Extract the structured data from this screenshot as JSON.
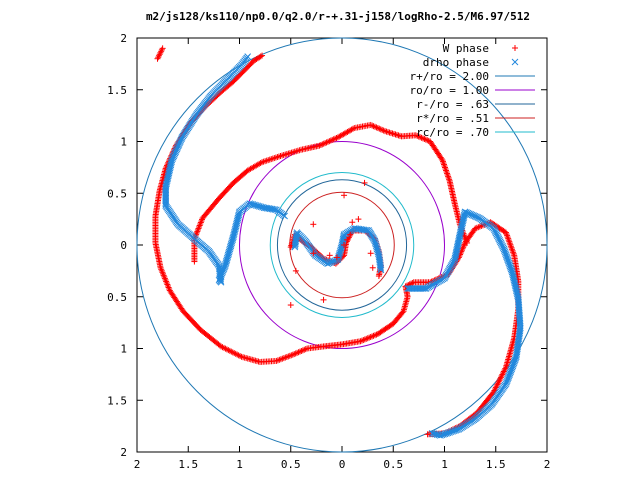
{
  "chart_data": {
    "type": "scatter",
    "title": "m2/js128/ks110/np0.0/q2.0/r-+.31-j158/logRho-2.5/M6.97/512",
    "xlim": [
      -2,
      2
    ],
    "ylim": [
      -2,
      2
    ],
    "x_tick_labels": [
      "2",
      "1.5",
      "1",
      "0.5",
      "0",
      "0.5",
      "1",
      "1.5",
      "2"
    ],
    "y_tick_labels": [
      "2",
      "1.5",
      "1",
      "0.5",
      "0",
      "0.5",
      "1",
      "1.5",
      "2"
    ],
    "grid": false,
    "legend_position": "top-right",
    "series": [
      {
        "name": "W phase",
        "marker": "plus",
        "color": "#ff0000",
        "points": [
          [
            -0.5,
            -0.58
          ],
          [
            -0.18,
            -0.53
          ],
          [
            0.22,
            0.6
          ],
          [
            0.02,
            0.48
          ],
          [
            -0.45,
            -0.25
          ],
          [
            -0.28,
            0.2
          ],
          [
            -0.28,
            -0.08
          ],
          [
            0.16,
            0.25
          ],
          [
            0.1,
            0.22
          ],
          [
            0.05,
            0.05
          ],
          [
            0.08,
            0.1
          ],
          [
            0.02,
            0.0
          ],
          [
            -0.05,
            -0.12
          ],
          [
            -0.12,
            -0.1
          ],
          [
            0.3,
            -0.22
          ],
          [
            0.28,
            -0.08
          ]
        ]
      },
      {
        "name": "drho phase",
        "marker": "cross",
        "color": "#2288dd",
        "points": []
      }
    ],
    "arms": [
      {
        "series": "W phase",
        "points": [
          [
            -0.78,
            1.83
          ],
          [
            -0.86,
            1.78
          ],
          [
            -0.96,
            1.68
          ],
          [
            -1.06,
            1.58
          ],
          [
            -1.18,
            1.48
          ],
          [
            -1.32,
            1.35
          ],
          [
            -1.48,
            1.18
          ],
          [
            -1.62,
            0.96
          ],
          [
            -1.72,
            0.74
          ],
          [
            -1.78,
            0.52
          ],
          [
            -1.82,
            0.28
          ],
          [
            -1.82,
            0.02
          ],
          [
            -1.77,
            -0.22
          ],
          [
            -1.68,
            -0.44
          ],
          [
            -1.55,
            -0.64
          ],
          [
            -1.38,
            -0.82
          ],
          [
            -1.18,
            -0.98
          ],
          [
            -0.98,
            -1.08
          ],
          [
            -0.8,
            -1.13
          ],
          [
            -0.64,
            -1.12
          ],
          [
            -0.48,
            -1.06
          ],
          [
            -0.34,
            -1.0
          ],
          [
            -0.18,
            -0.98
          ],
          [
            0.0,
            -0.96
          ],
          [
            0.18,
            -0.93
          ],
          [
            0.35,
            -0.86
          ],
          [
            0.5,
            -0.76
          ],
          [
            0.6,
            -0.64
          ],
          [
            0.64,
            -0.5
          ],
          [
            0.62,
            -0.4
          ],
          [
            0.7,
            -0.36
          ],
          [
            0.86,
            -0.36
          ],
          [
            1.04,
            -0.28
          ],
          [
            1.14,
            -0.12
          ],
          [
            1.2,
            0.02
          ],
          [
            1.3,
            0.16
          ],
          [
            1.45,
            0.22
          ],
          [
            1.6,
            0.12
          ],
          [
            1.68,
            -0.1
          ],
          [
            1.72,
            -0.35
          ],
          [
            1.72,
            -0.62
          ],
          [
            1.68,
            -0.9
          ],
          [
            1.6,
            -1.18
          ],
          [
            1.48,
            -1.42
          ],
          [
            1.32,
            -1.62
          ],
          [
            1.15,
            -1.75
          ],
          [
            1.0,
            -1.82
          ],
          [
            0.82,
            -1.83
          ],
          [
            -1.75,
            1.9
          ],
          [
            -1.8,
            1.8
          ]
        ]
      },
      {
        "series": "W phase",
        "points": [
          [
            1.22,
            0.02
          ],
          [
            1.15,
            0.2
          ],
          [
            1.1,
            0.4
          ],
          [
            1.05,
            0.62
          ],
          [
            0.98,
            0.82
          ],
          [
            0.86,
            1.0
          ],
          [
            0.72,
            1.06
          ],
          [
            0.58,
            1.05
          ],
          [
            0.42,
            1.1
          ],
          [
            0.28,
            1.16
          ],
          [
            0.12,
            1.13
          ],
          [
            -0.04,
            1.04
          ],
          [
            -0.22,
            0.96
          ],
          [
            -0.4,
            0.92
          ],
          [
            -0.6,
            0.86
          ],
          [
            -0.78,
            0.8
          ],
          [
            -0.92,
            0.72
          ],
          [
            -1.06,
            0.6
          ],
          [
            -1.2,
            0.45
          ],
          [
            -1.36,
            0.26
          ],
          [
            -1.44,
            0.06
          ],
          [
            -1.44,
            -0.16
          ]
        ]
      },
      {
        "series": "W phase",
        "points": [
          [
            -0.5,
            -0.02
          ],
          [
            -0.46,
            0.1
          ],
          [
            -0.42,
            0.06
          ],
          [
            -0.3,
            -0.02
          ],
          [
            -0.18,
            -0.13
          ],
          [
            -0.06,
            -0.18
          ],
          [
            0.02,
            -0.1
          ],
          [
            0.04,
            0.02
          ],
          [
            0.1,
            0.14
          ],
          [
            0.22,
            0.14
          ],
          [
            0.32,
            0.06
          ],
          [
            0.36,
            -0.06
          ],
          [
            0.38,
            -0.2
          ],
          [
            0.36,
            -0.3
          ]
        ]
      },
      {
        "series": "drho phase",
        "points": [
          [
            -0.92,
            1.82
          ],
          [
            -0.98,
            1.74
          ],
          [
            -1.06,
            1.66
          ],
          [
            -1.16,
            1.56
          ],
          [
            -1.28,
            1.44
          ],
          [
            -1.42,
            1.26
          ],
          [
            -1.56,
            1.04
          ],
          [
            -1.66,
            0.82
          ],
          [
            -1.72,
            0.56
          ],
          [
            -1.72,
            0.38
          ],
          [
            -1.6,
            0.2
          ],
          [
            -1.44,
            0.06
          ],
          [
            -1.3,
            -0.06
          ],
          [
            -1.2,
            -0.2
          ],
          [
            -1.18,
            -0.36
          ],
          [
            -1.2,
            -0.34
          ],
          [
            -1.14,
            -0.2
          ],
          [
            -1.06,
            0.08
          ],
          [
            -1.0,
            0.32
          ],
          [
            -0.9,
            0.4
          ],
          [
            -0.76,
            0.36
          ],
          [
            -0.64,
            0.34
          ],
          [
            -0.56,
            0.28
          ]
        ]
      },
      {
        "series": "drho phase",
        "points": [
          [
            -0.46,
            -0.02
          ],
          [
            -0.44,
            0.12
          ],
          [
            -0.36,
            0.04
          ],
          [
            -0.26,
            -0.1
          ],
          [
            -0.14,
            -0.18
          ],
          [
            -0.04,
            -0.14
          ],
          [
            0.0,
            0.0
          ],
          [
            0.02,
            0.1
          ],
          [
            0.12,
            0.16
          ],
          [
            0.26,
            0.14
          ],
          [
            0.32,
            0.04
          ],
          [
            0.36,
            -0.1
          ],
          [
            0.38,
            -0.24
          ]
        ]
      },
      {
        "series": "drho phase",
        "points": [
          [
            0.64,
            -0.42
          ],
          [
            0.82,
            -0.42
          ],
          [
            1.0,
            -0.32
          ],
          [
            1.1,
            -0.14
          ],
          [
            1.16,
            0.14
          ],
          [
            1.2,
            0.32
          ],
          [
            1.34,
            0.26
          ],
          [
            1.48,
            0.16
          ],
          [
            1.58,
            -0.04
          ],
          [
            1.66,
            -0.26
          ],
          [
            1.72,
            -0.52
          ],
          [
            1.74,
            -0.8
          ],
          [
            1.7,
            -1.08
          ],
          [
            1.6,
            -1.34
          ],
          [
            1.46,
            -1.54
          ],
          [
            1.3,
            -1.68
          ],
          [
            1.14,
            -1.78
          ],
          [
            0.96,
            -1.84
          ],
          [
            0.88,
            -1.82
          ]
        ]
      }
    ],
    "circles": [
      {
        "name": "r+/ro = 2.00",
        "radius": 2.0,
        "color": "#1f78b4"
      },
      {
        "name": "ro/ro = 1.00",
        "radius": 1.0,
        "color": "#9900cc"
      },
      {
        "name": "r-/ro = .63",
        "radius": 0.63,
        "color": "#226699"
      },
      {
        "name": "r*/ro = .51",
        "radius": 0.51,
        "color": "#cc2222"
      },
      {
        "name": "rc/ro = .70",
        "radius": 0.7,
        "color": "#22bbcc"
      }
    ]
  }
}
